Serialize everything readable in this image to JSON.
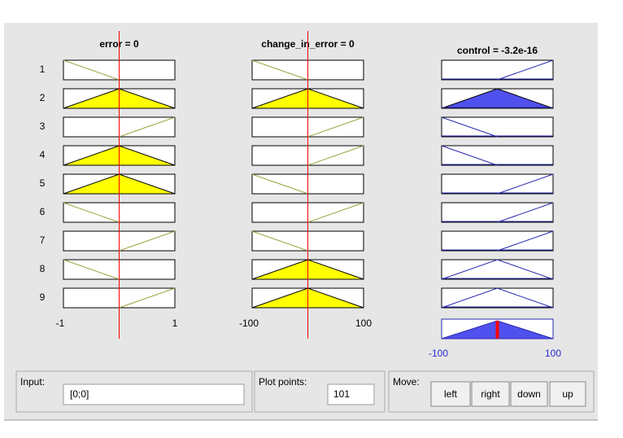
{
  "columns": [
    {
      "title": "error = 0",
      "range": [
        "-1",
        "1"
      ]
    },
    {
      "title": "change_in_error = 0",
      "range": [
        "-100",
        "100"
      ]
    },
    {
      "title": "control = -3.2e-16",
      "range": [
        "-100",
        "100"
      ]
    }
  ],
  "rows": [
    "1",
    "2",
    "3",
    "4",
    "5",
    "6",
    "7",
    "8",
    "9"
  ],
  "input": {
    "label": "Input:",
    "value": "[0;0]"
  },
  "plot_points": {
    "label": "Plot points:",
    "value": "101"
  },
  "move": {
    "label": "Move:",
    "buttons": [
      "left",
      "right",
      "down",
      "up"
    ]
  }
}
